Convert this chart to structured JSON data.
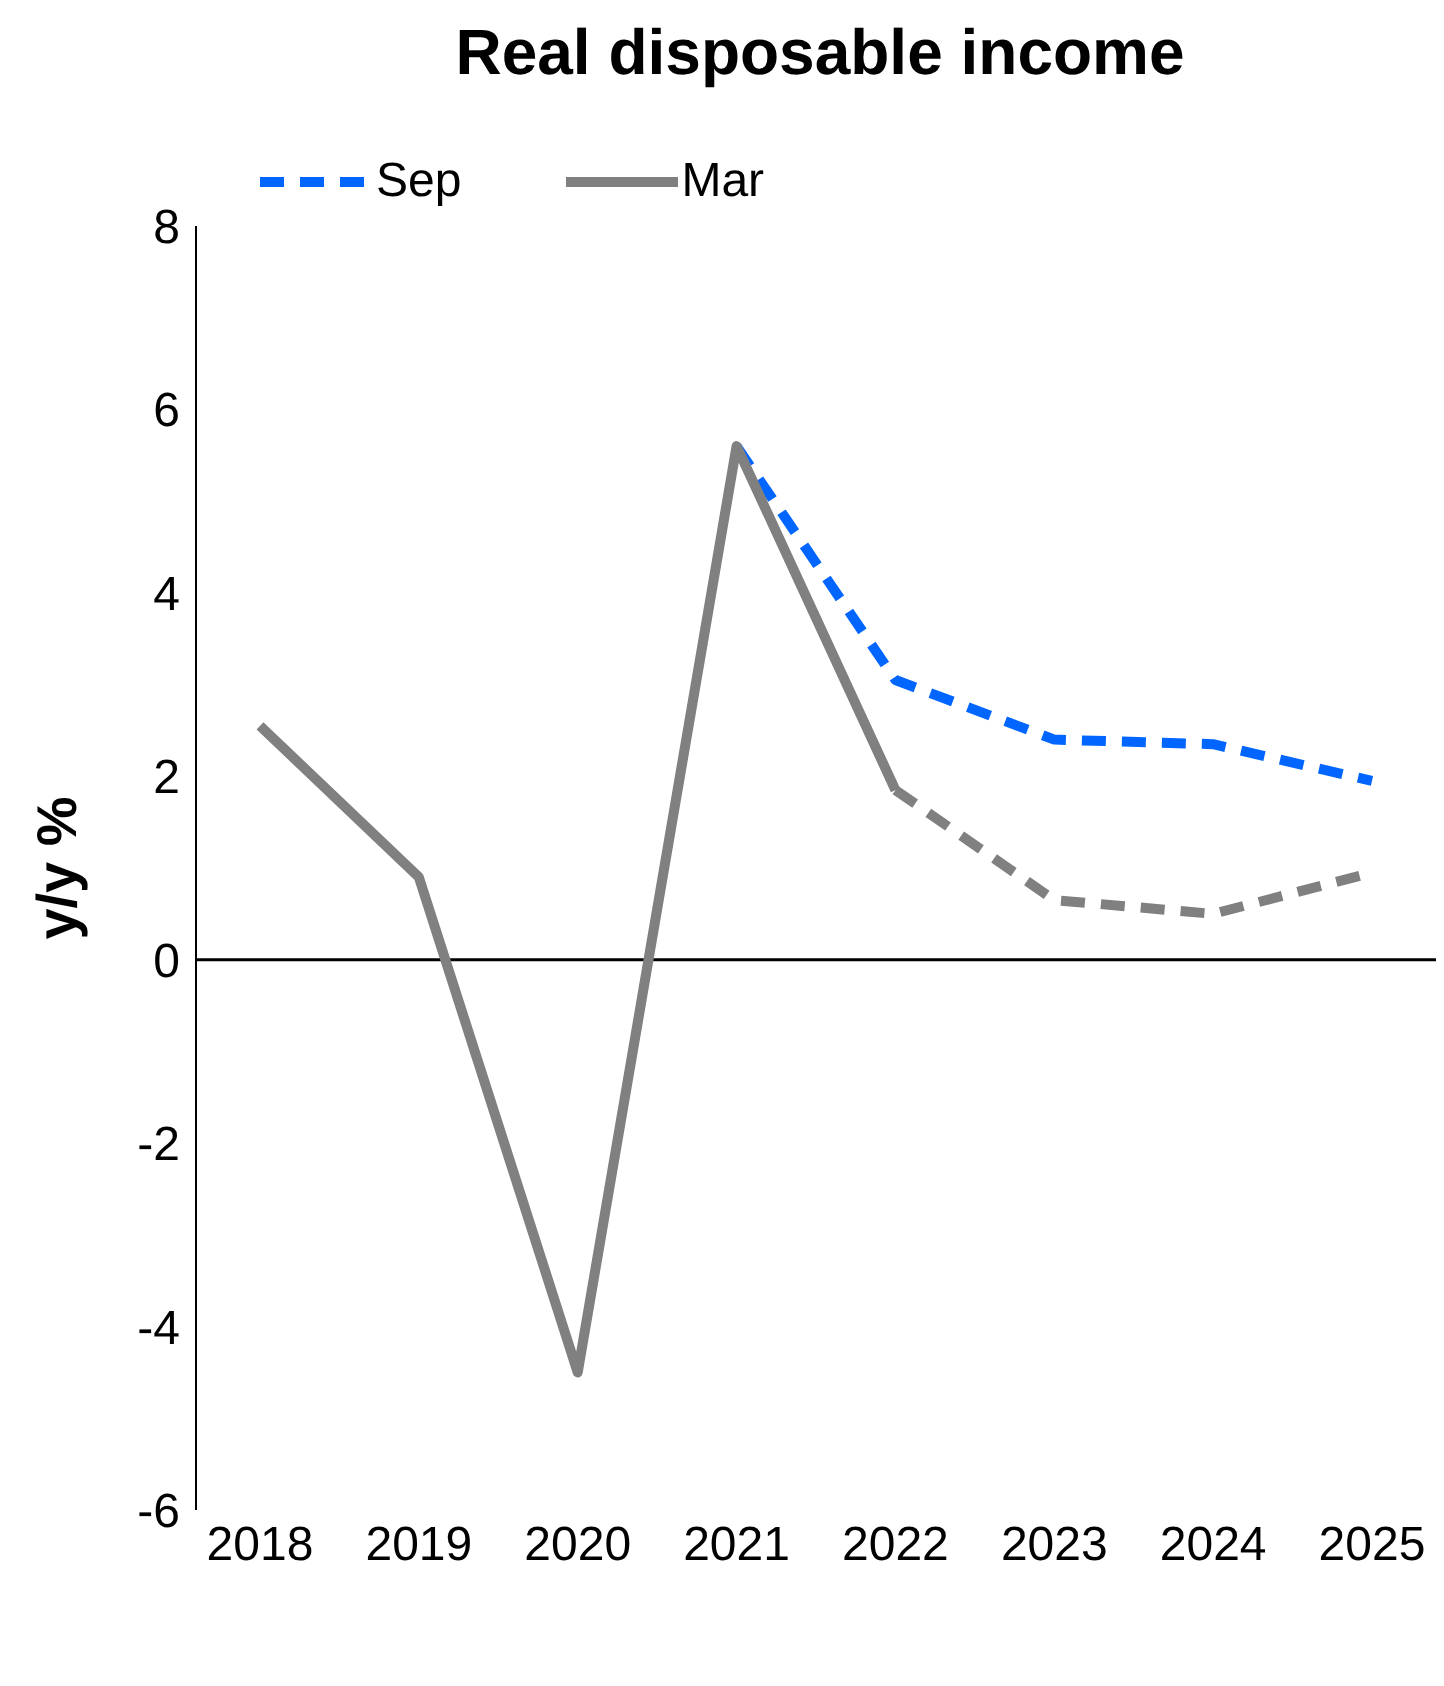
{
  "chart_data": {
    "type": "line",
    "title": "Real disposable income",
    "ylabel": "y/y %",
    "categories": [
      "2018",
      "2019",
      "2020",
      "2021",
      "2022",
      "2023",
      "2024",
      "2025"
    ],
    "ylim": [
      -6,
      8
    ],
    "yticks": [
      -6,
      -4,
      -2,
      0,
      2,
      4,
      6,
      8
    ],
    "grid": false,
    "legend": "top",
    "marker": "none",
    "ref_lines": [
      {
        "axis": "y",
        "value": 0,
        "color": "#000000"
      }
    ],
    "series": [
      {
        "name": "Sep",
        "color": "#0066ff",
        "line_style": "dashed",
        "values": [
          null,
          null,
          null,
          5.6,
          3.05,
          2.4,
          2.35,
          1.95
        ]
      },
      {
        "color": "#808080",
        "line_style": "dashed",
        "values": [
          null,
          null,
          null,
          null,
          1.85,
          0.65,
          0.5,
          0.95
        ]
      },
      {
        "name": "Mar",
        "color": "#808080",
        "line_style": "solid",
        "values": [
          2.55,
          0.9,
          -4.5,
          5.6,
          1.85,
          null,
          null,
          null
        ]
      }
    ]
  }
}
